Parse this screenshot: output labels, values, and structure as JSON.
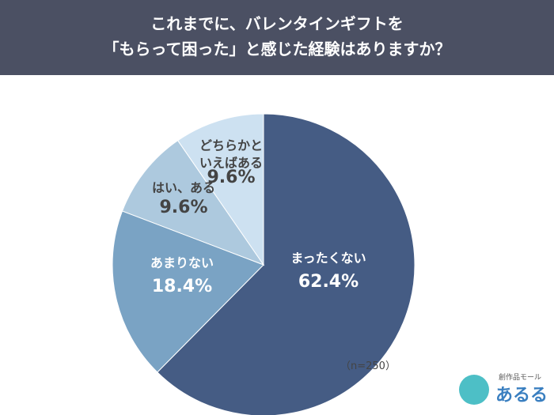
{
  "chart_data": {
    "type": "pie",
    "title": [
      "これまでに、バレンタインギフトを",
      "「もらって困った」と感じた経験はありますか？"
    ],
    "categories": [
      "まったくない",
      "あまりない",
      "はい、ある",
      "どちらかといえばある"
    ],
    "values": [
      62.4,
      18.4,
      9.6,
      9.6
    ],
    "value_labels": [
      "62.4%",
      "18.4%",
      "9.6%",
      "9.6%"
    ],
    "colors": [
      "#455c84",
      "#7aa3c4",
      "#adc9de",
      "#cde1f1"
    ],
    "annotation": "（n=250）"
  },
  "logo": {
    "tagline": "創作品モール",
    "name": "あるる"
  }
}
